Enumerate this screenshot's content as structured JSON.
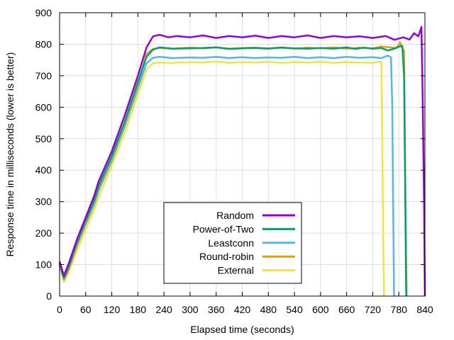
{
  "chart_data": {
    "type": "line",
    "title": "",
    "xlabel": "Elapsed time (seconds)",
    "ylabel": "Response time in milliseconds (lower is better)",
    "xlim": [
      0,
      840
    ],
    "ylim": [
      0,
      900
    ],
    "xticks": [
      0,
      60,
      120,
      180,
      240,
      300,
      360,
      420,
      480,
      540,
      600,
      660,
      720,
      780,
      840
    ],
    "yticks": [
      0,
      100,
      200,
      300,
      400,
      500,
      600,
      700,
      800,
      900
    ],
    "grid": true,
    "legend_position": "bottom-center",
    "series": [
      {
        "name": "Random",
        "color": "#9400d3",
        "points": [
          [
            0,
            110
          ],
          [
            10,
            65
          ],
          [
            20,
            100
          ],
          [
            40,
            180
          ],
          [
            60,
            250
          ],
          [
            80,
            320
          ],
          [
            90,
            365
          ],
          [
            120,
            460
          ],
          [
            150,
            575
          ],
          [
            180,
            700
          ],
          [
            200,
            790
          ],
          [
            215,
            825
          ],
          [
            230,
            830
          ],
          [
            250,
            822
          ],
          [
            270,
            826
          ],
          [
            300,
            822
          ],
          [
            330,
            828
          ],
          [
            360,
            820
          ],
          [
            390,
            826
          ],
          [
            420,
            822
          ],
          [
            450,
            827
          ],
          [
            480,
            820
          ],
          [
            510,
            826
          ],
          [
            540,
            822
          ],
          [
            570,
            828
          ],
          [
            600,
            820
          ],
          [
            630,
            826
          ],
          [
            660,
            822
          ],
          [
            690,
            825
          ],
          [
            720,
            820
          ],
          [
            750,
            826
          ],
          [
            770,
            814
          ],
          [
            790,
            822
          ],
          [
            805,
            815
          ],
          [
            815,
            835
          ],
          [
            825,
            825
          ],
          [
            832,
            855
          ],
          [
            835,
            620
          ],
          [
            838,
            300
          ],
          [
            840,
            0
          ]
        ]
      },
      {
        "name": "Power-of-Two",
        "color": "#009e73",
        "points": [
          [
            0,
            105
          ],
          [
            10,
            58
          ],
          [
            20,
            90
          ],
          [
            40,
            170
          ],
          [
            60,
            240
          ],
          [
            80,
            305
          ],
          [
            90,
            350
          ],
          [
            120,
            445
          ],
          [
            150,
            555
          ],
          [
            180,
            680
          ],
          [
            200,
            760
          ],
          [
            215,
            783
          ],
          [
            230,
            790
          ],
          [
            260,
            786
          ],
          [
            300,
            787
          ],
          [
            330,
            788
          ],
          [
            360,
            790
          ],
          [
            390,
            785
          ],
          [
            420,
            787
          ],
          [
            450,
            788
          ],
          [
            480,
            786
          ],
          [
            510,
            789
          ],
          [
            540,
            787
          ],
          [
            570,
            786
          ],
          [
            600,
            788
          ],
          [
            630,
            786
          ],
          [
            660,
            790
          ],
          [
            680,
            785
          ],
          [
            700,
            789
          ],
          [
            720,
            786
          ],
          [
            740,
            788
          ],
          [
            755,
            780
          ],
          [
            770,
            786
          ],
          [
            780,
            792
          ],
          [
            788,
            795
          ],
          [
            792,
            700
          ],
          [
            795,
            300
          ],
          [
            797,
            0
          ]
        ]
      },
      {
        "name": "Leastconn",
        "color": "#56b4e9",
        "points": [
          [
            0,
            100
          ],
          [
            10,
            52
          ],
          [
            20,
            82
          ],
          [
            40,
            160
          ],
          [
            60,
            228
          ],
          [
            80,
            292
          ],
          [
            90,
            335
          ],
          [
            120,
            430
          ],
          [
            150,
            540
          ],
          [
            180,
            660
          ],
          [
            200,
            740
          ],
          [
            215,
            757
          ],
          [
            230,
            760
          ],
          [
            260,
            756
          ],
          [
            300,
            758
          ],
          [
            330,
            757
          ],
          [
            360,
            760
          ],
          [
            390,
            756
          ],
          [
            420,
            759
          ],
          [
            450,
            756
          ],
          [
            480,
            758
          ],
          [
            510,
            757
          ],
          [
            540,
            760
          ],
          [
            570,
            756
          ],
          [
            600,
            759
          ],
          [
            630,
            756
          ],
          [
            660,
            760
          ],
          [
            690,
            757
          ],
          [
            720,
            759
          ],
          [
            740,
            756
          ],
          [
            755,
            764
          ],
          [
            762,
            758
          ],
          [
            765,
            600
          ],
          [
            767,
            300
          ],
          [
            769,
            0
          ]
        ]
      },
      {
        "name": "Round-robin",
        "color": "#e69f00",
        "points": [
          [
            0,
            102
          ],
          [
            10,
            55
          ],
          [
            20,
            85
          ],
          [
            40,
            165
          ],
          [
            60,
            235
          ],
          [
            80,
            300
          ],
          [
            90,
            345
          ],
          [
            120,
            440
          ],
          [
            150,
            550
          ],
          [
            180,
            672
          ],
          [
            200,
            770
          ],
          [
            215,
            785
          ],
          [
            230,
            788
          ],
          [
            260,
            786
          ],
          [
            300,
            789
          ],
          [
            330,
            787
          ],
          [
            360,
            790
          ],
          [
            390,
            786
          ],
          [
            420,
            788
          ],
          [
            450,
            789
          ],
          [
            480,
            787
          ],
          [
            510,
            790
          ],
          [
            540,
            786
          ],
          [
            570,
            789
          ],
          [
            600,
            787
          ],
          [
            630,
            790
          ],
          [
            660,
            786
          ],
          [
            690,
            789
          ],
          [
            720,
            787
          ],
          [
            740,
            793
          ],
          [
            760,
            790
          ],
          [
            775,
            788
          ],
          [
            783,
            806
          ],
          [
            787,
            790
          ],
          [
            792,
            780
          ],
          [
            794,
            500
          ],
          [
            796,
            200
          ],
          [
            798,
            0
          ]
        ]
      },
      {
        "name": "External",
        "color": "#f0e442",
        "points": [
          [
            0,
            95
          ],
          [
            10,
            45
          ],
          [
            20,
            72
          ],
          [
            40,
            145
          ],
          [
            60,
            212
          ],
          [
            80,
            275
          ],
          [
            90,
            315
          ],
          [
            120,
            415
          ],
          [
            150,
            520
          ],
          [
            180,
            640
          ],
          [
            200,
            720
          ],
          [
            215,
            740
          ],
          [
            230,
            742
          ],
          [
            260,
            741
          ],
          [
            300,
            743
          ],
          [
            330,
            742
          ],
          [
            360,
            745
          ],
          [
            390,
            741
          ],
          [
            420,
            743
          ],
          [
            450,
            742
          ],
          [
            480,
            744
          ],
          [
            510,
            741
          ],
          [
            540,
            743
          ],
          [
            570,
            742
          ],
          [
            600,
            744
          ],
          [
            630,
            741
          ],
          [
            660,
            743
          ],
          [
            690,
            742
          ],
          [
            720,
            741
          ],
          [
            735,
            745
          ],
          [
            740,
            743
          ],
          [
            742,
            500
          ],
          [
            744,
            200
          ],
          [
            746,
            0
          ]
        ]
      }
    ]
  }
}
